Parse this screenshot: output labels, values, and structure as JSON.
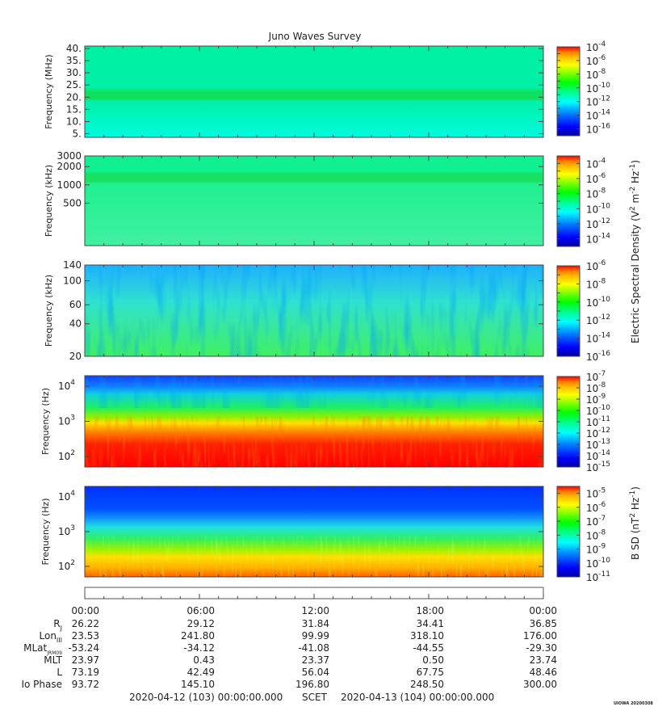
{
  "title": "Juno Waves Survey",
  "colors": {
    "colormap": [
      "#0000a0",
      "#0000ff",
      "#0080ff",
      "#00ffff",
      "#00ff80",
      "#00ff00",
      "#80ff00",
      "#ffff00",
      "#ffc000",
      "#ff8000",
      "#ff0000"
    ]
  },
  "chart_data": [
    {
      "type": "heatmap",
      "panel": "high-frequency",
      "ylabel": "Frequency (MHz)",
      "y_ticks": [
        "40.",
        "35.",
        "30.",
        "25.",
        "20.",
        "15.",
        "10.",
        "5."
      ],
      "y_tick_values": [
        40,
        35,
        30,
        25,
        20,
        15,
        10,
        5
      ],
      "ylim": [
        3.5,
        41
      ],
      "colorbar_ticks": [
        "-4",
        "-6",
        "-8",
        "-10",
        "-12",
        "-14",
        "-16"
      ],
      "colorbar_range_log10": [
        -4,
        -17
      ],
      "description_of_features": "uniform background near 1e-12 with a brighter band near 21 MHz"
    },
    {
      "type": "heatmap",
      "panel": "mid-frequency",
      "ylabel": "Frequency (kHz)",
      "y_ticks": [
        "3000",
        "2000",
        "1000",
        "500"
      ],
      "y_tick_values": [
        3000,
        2000,
        1000,
        500
      ],
      "ylim": [
        100,
        3000
      ],
      "colorbar_ticks": [
        "-4",
        "-6",
        "-8",
        "-10",
        "-12",
        "-14"
      ],
      "colorbar_range_log10": [
        -3,
        -15
      ]
    },
    {
      "type": "heatmap",
      "panel": "low-frequency-e",
      "ylabel": "Frequency (kHz)",
      "y_ticks": [
        "140",
        "100",
        "60",
        "40",
        "20"
      ],
      "y_tick_values": [
        140,
        100,
        60,
        40,
        20
      ],
      "ylim": [
        20,
        140
      ],
      "colorbar_ticks": [
        "-6",
        "-8",
        "-10",
        "-12",
        "-14",
        "-16"
      ],
      "colorbar_range_log10": [
        -6,
        -16
      ]
    },
    {
      "type": "heatmap",
      "panel": "audio-frequency-e",
      "ylabel": "Frequency (Hz)",
      "y_ticks": [
        "4",
        "3",
        "2"
      ],
      "y_tick_values": [
        10000,
        1000,
        100
      ],
      "ylim": [
        50,
        20000
      ],
      "colorbar_ticks": [
        "-7",
        "-8",
        "-9",
        "-10",
        "-11",
        "-12",
        "-13",
        "-14",
        "-15"
      ],
      "colorbar_range_log10": [
        -7,
        -15
      ]
    },
    {
      "type": "heatmap",
      "panel": "audio-frequency-b",
      "ylabel": "Frequency (Hz)",
      "y_ticks": [
        "4",
        "3",
        "2"
      ],
      "y_tick_values": [
        10000,
        1000,
        100
      ],
      "ylim": [
        50,
        20000
      ],
      "colorbar_ticks": [
        "-5",
        "-6",
        "-7",
        "-8",
        "-9",
        "-10",
        "-11"
      ],
      "colorbar_range_log10": [
        -4.5,
        -11
      ]
    }
  ],
  "colorbar_label_e": "Electric Spectral Density (V",
  "colorbar_label_e_sup1": "2",
  "colorbar_label_e_mid": " m",
  "colorbar_label_e_sup2": "-2",
  "colorbar_label_e_mid2": " Hz",
  "colorbar_label_e_sup3": "-1",
  "colorbar_label_e_end": ")",
  "colorbar_label_b": "B SD (nT",
  "colorbar_label_b_sup1": "2",
  "colorbar_label_b_mid": " Hz",
  "colorbar_label_b_sup2": "-1",
  "colorbar_label_b_end": ")",
  "tick_base": "10",
  "time_axis": {
    "ticks": [
      "00:00",
      "06:00",
      "12:00",
      "18:00",
      "00:00"
    ]
  },
  "ephemeris": [
    {
      "label": "R",
      "sub": "J",
      "values": [
        "26.22",
        "29.12",
        "31.84",
        "34.41",
        "36.85"
      ]
    },
    {
      "label": "Lon",
      "sub": "III",
      "values": [
        "23.53",
        "241.80",
        "99.99",
        "318.10",
        "176.00"
      ]
    },
    {
      "label": "MLat",
      "sub": "JRM09",
      "values": [
        "-53.24",
        "-34.12",
        "-41.08",
        "-44.55",
        "-29.30"
      ]
    },
    {
      "label": "MLT",
      "sub": "",
      "values": [
        "23.97",
        "0.43",
        "23.37",
        "0.50",
        "23.74"
      ]
    },
    {
      "label": "L",
      "sub": "",
      "values": [
        "73.19",
        "42.49",
        "56.04",
        "67.75",
        "48.46"
      ]
    },
    {
      "label": "Io Phase",
      "sub": "",
      "values": [
        "93.72",
        "145.10",
        "196.80",
        "248.50",
        "300.00"
      ]
    }
  ],
  "footer": {
    "start": "2020-04-12 (103) 00:00:00.000",
    "scet": "SCET",
    "end": "2020-04-13 (104) 00:00:00.000",
    "stamp": "UIOWA 20200308"
  }
}
